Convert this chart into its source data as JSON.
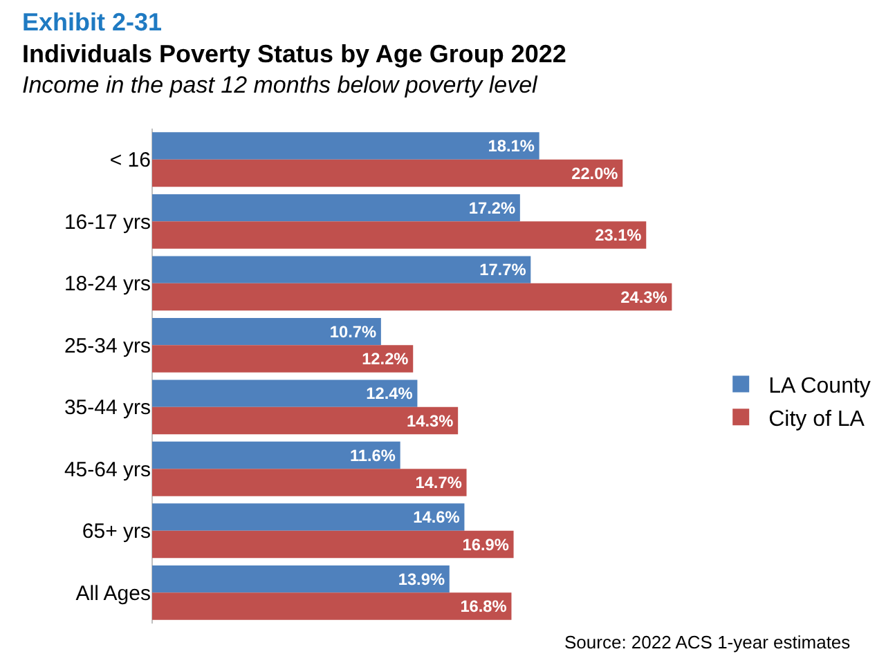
{
  "chart_data": {
    "type": "bar",
    "orientation": "horizontal",
    "title": "Individuals Poverty Status by Age Group 2022",
    "subtitle": "Income in the past 12 months below poverty level",
    "annotations": [
      "Exhibit 2-31",
      "Source: 2022 ACS 1-year estimates"
    ],
    "categories": [
      "< 16",
      "16-17 yrs",
      "18-24 yrs",
      "25-34 yrs",
      "35-44 yrs",
      "45-64 yrs",
      "65+ yrs",
      "All Ages"
    ],
    "series": [
      {
        "name": "LA County",
        "color": "#4f81bd",
        "values": [
          18.1,
          17.2,
          17.7,
          10.7,
          12.4,
          11.6,
          14.6,
          13.9
        ],
        "value_labels": [
          "18.1%",
          "17.2%",
          "17.7%",
          "10.7%",
          "12.4%",
          "11.6%",
          "14.6%",
          "13.9%"
        ]
      },
      {
        "name": "City of LA",
        "color": "#c0504d",
        "values": [
          22.0,
          23.1,
          24.3,
          12.2,
          14.3,
          14.7,
          16.9,
          16.8
        ],
        "value_labels": [
          "22.0%",
          "23.1%",
          "24.3%",
          "12.2%",
          "14.3%",
          "14.7%",
          "16.9%",
          "16.8%"
        ]
      }
    ],
    "legend": "right",
    "grid": false
  }
}
